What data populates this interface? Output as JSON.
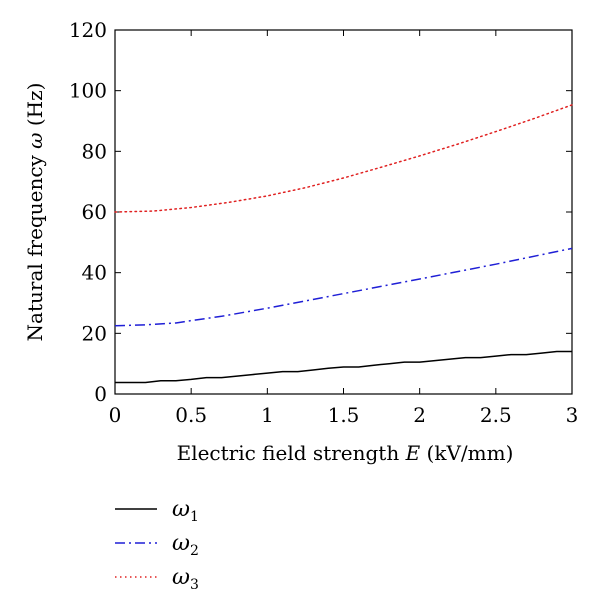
{
  "chart_data": {
    "type": "line",
    "xlabel": {
      "prefix": "Electric field strength ",
      "symbol": "E",
      "suffix": " (kV/mm)"
    },
    "ylabel": {
      "prefix": "Natural frequency ",
      "symbol": "ω",
      "suffix": " (Hz)"
    },
    "xlim": [
      0,
      3
    ],
    "ylim": [
      0,
      120
    ],
    "xticks": [
      0,
      0.5,
      1,
      1.5,
      2,
      2.5,
      3
    ],
    "xtick_labels": [
      "0",
      "0.5",
      "1",
      "1.5",
      "2",
      "2.5",
      "3"
    ],
    "yticks": [
      0,
      20,
      40,
      60,
      80,
      100,
      120
    ],
    "ytick_labels": [
      "0",
      "20",
      "40",
      "60",
      "80",
      "100",
      "120"
    ],
    "grid": false,
    "legend_position": "below the plot, left",
    "series": [
      {
        "name": "ω1",
        "symbol": "ω",
        "subscript": "1",
        "color": "#000000",
        "style": "solid",
        "x": [
          0,
          0.1,
          0.2,
          0.3,
          0.4,
          0.5,
          0.6,
          0.7,
          0.8,
          0.9,
          1.0,
          1.1,
          1.2,
          1.3,
          1.4,
          1.5,
          1.6,
          1.7,
          1.8,
          1.9,
          2.0,
          2.1,
          2.2,
          2.3,
          2.4,
          2.5,
          2.6,
          2.7,
          2.8,
          2.9,
          3.0
        ],
        "y": [
          3.8,
          3.8,
          3.8,
          4.4,
          4.4,
          4.8,
          5.4,
          5.4,
          5.9,
          6.4,
          6.9,
          7.4,
          7.4,
          7.9,
          8.5,
          8.9,
          8.9,
          9.5,
          10.0,
          10.5,
          10.5,
          11.0,
          11.5,
          12.0,
          12.0,
          12.5,
          13.0,
          13.0,
          13.5,
          14.0,
          14.0
        ]
      },
      {
        "name": "ω2",
        "symbol": "ω",
        "subscript": "2",
        "color": "#1f1fd6",
        "style": "dashdot",
        "x": [
          0,
          0.2,
          0.4,
          0.5,
          0.7,
          1.0,
          1.5,
          2.0,
          2.5,
          3.0
        ],
        "y": [
          22.5,
          22.8,
          23.4,
          24.2,
          25.6,
          28.3,
          33.1,
          37.9,
          42.8,
          48.0
        ]
      },
      {
        "name": "ω3",
        "symbol": "ω",
        "subscript": "3",
        "color": "#e02020",
        "style": "dotted",
        "x": [
          0,
          0.25,
          0.5,
          0.75,
          1.0,
          1.25,
          1.5,
          1.75,
          2.0,
          2.25,
          2.5,
          2.75,
          3.0
        ],
        "y": [
          60.0,
          60.3,
          61.5,
          63.2,
          65.3,
          68.0,
          71.2,
          74.8,
          78.5,
          82.4,
          86.5,
          90.8,
          95.3
        ]
      }
    ]
  }
}
